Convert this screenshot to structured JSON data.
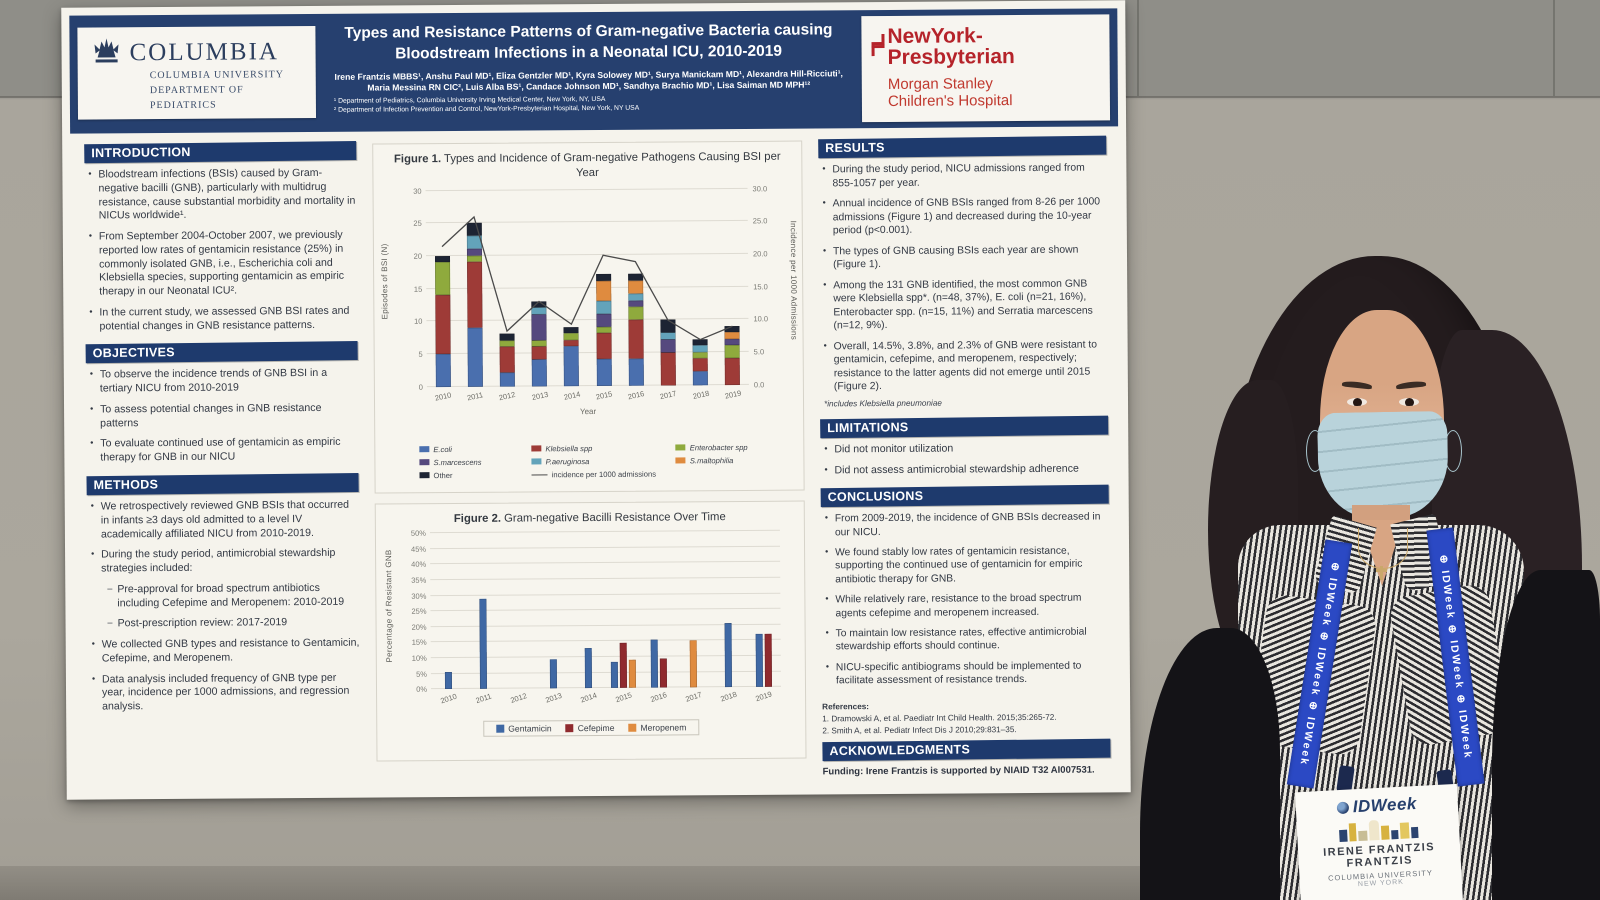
{
  "poster": {
    "header": {
      "columbia": {
        "word": "COLUMBIA",
        "sub1": "COLUMBIA UNIVERSITY",
        "sub2": "DEPARTMENT OF PEDIATRICS"
      },
      "title_line1": "Types and Resistance Patterns of Gram-negative Bacteria causing",
      "title_line2": "Bloodstream Infections in a Neonatal ICU, 2010-2019",
      "authors": "Irene Frantzis MBBS¹, Anshu Paul MD¹, Eliza Gentzler MD¹, Kyra Solowey MD¹, Surya Manickam MD¹, Alexandra Hill-Ricciuti¹, Maria Messina RN CIC², Luis Alba BS¹, Candace Johnson MD¹, Sandhya Brachio MD¹, Lisa Saiman MD MPH¹²",
      "affil1": "¹ Department of Pediatrics, Columbia University Irving Medical Center, New York, NY, USA",
      "affil2": "² Department of Infection Prevention and Control, NewYork-Presbyterian Hospital, New York, NY USA",
      "nyp": {
        "line1": "NewYork-",
        "line2": "Presbyterian",
        "sub1": "Morgan Stanley",
        "sub2": "Children's Hospital"
      }
    },
    "sections": {
      "introduction": {
        "title": "INTRODUCTION",
        "bullets": [
          "Bloodstream infections (BSIs) caused by Gram-negative bacilli (GNB), particularly with multidrug resistance, cause substantial morbidity and mortality in NICUs worldwide¹.",
          "From September 2004-October 2007, we previously reported low rates of gentamicin resistance (25%) in commonly isolated GNB, i.e., Escherichia coli and Klebsiella species, supporting gentamicin as empiric therapy in our Neonatal ICU².",
          "In the current study, we assessed GNB BSI rates and potential changes in GNB resistance patterns."
        ]
      },
      "objectives": {
        "title": "OBJECTIVES",
        "bullets": [
          "To observe the incidence trends of GNB BSI in a tertiary NICU from 2010-2019",
          "To assess potential changes in GNB resistance patterns",
          "To evaluate continued use of gentamicin as empiric therapy for GNB in our NICU"
        ]
      },
      "methods": {
        "title": "METHODS",
        "bullets": [
          "We retrospectively reviewed GNB BSIs that occurred in infants ≥3 days old admitted to a level IV academically affiliated NICU from 2010-2019.",
          "During the study period, antimicrobial stewardship strategies included:",
          "Pre-approval for broad spectrum antibiotics including Cefepime and Meropenem: 2010-2019",
          "Post-prescription review: 2017-2019",
          "We collected GNB types and resistance to Gentamicin, Cefepime, and Meropenem.",
          "Data analysis included frequency of GNB type per year, incidence per 1000 admissions, and regression analysis."
        ]
      },
      "results": {
        "title": "RESULTS",
        "bullets": [
          "During the study period, NICU admissions ranged from 855-1057 per year.",
          "Annual incidence of GNB BSIs ranged from 8-26 per 1000 admissions (Figure 1) and decreased during the 10-year period (p<0.001).",
          "The types of GNB causing BSIs each year are shown (Figure 1).",
          "Among the 131 GNB identified, the most common GNB were Klebsiella spp*. (n=48, 37%), E. coli (n=21, 16%), Enterobacter spp. (n=15, 11%) and Serratia marcescens (n=12, 9%).",
          "Overall, 14.5%, 3.8%, and 2.3% of GNB were resistant to gentamicin, cefepime, and meropenem, respectively; resistance to the latter agents did not emerge until 2015 (Figure 2)."
        ],
        "footnote": "*includes Klebsiella pneumoniae"
      },
      "limitations": {
        "title": "LIMITATIONS",
        "bullets": [
          "Did not monitor utilization",
          "Did not assess antimicrobial stewardship adherence"
        ]
      },
      "conclusions": {
        "title": "CONCLUSIONS",
        "bullets": [
          "From 2009-2019, the incidence of GNB BSIs decreased in our NICU.",
          "We found stably low rates of gentamicin resistance, supporting the continued use of gentamicin for empiric antibiotic therapy for GNB.",
          "While relatively rare, resistance to the broad spectrum agents cefepime and meropenem increased.",
          "To maintain low resistance rates, effective antimicrobial stewardship efforts should continue.",
          "NICU-specific antibiograms should be implemented to facilitate assessment of resistance trends."
        ]
      },
      "references": {
        "title": "References:",
        "items": [
          "1. Dramowski A, et al. Paediatr Int Child Health. 2015;35:265-72.",
          "2. Smith A, et al. Pediatr Infect Dis J 2010;29:831–35."
        ]
      },
      "acknowledgments": {
        "title": "ACKNOWLEDGMENTS",
        "text": "Funding: Irene Frantzis is supported by NIAID T32 AI007531."
      }
    }
  },
  "chart_data": [
    {
      "type": "bar",
      "stacked": true,
      "title_bold": "Figure 1.",
      "title_rest": " Types and Incidence of Gram-negative Pathogens Causing BSI per Year",
      "categories": [
        "2010",
        "2011",
        "2012",
        "2013",
        "2014",
        "2015",
        "2016",
        "2017",
        "2018",
        "2019"
      ],
      "series": [
        {
          "name": "E.coli",
          "color": "#4a6fae",
          "values": [
            5,
            9,
            2,
            4,
            6,
            4,
            4,
            0,
            2,
            0
          ]
        },
        {
          "name": "Klebsiella spp",
          "color": "#9e3b37",
          "values": [
            9,
            10,
            4,
            2,
            1,
            4,
            6,
            5,
            2,
            4
          ]
        },
        {
          "name": "Enterobacter spp",
          "color": "#8faa3d",
          "values": [
            5,
            1,
            1,
            1,
            1,
            1,
            2,
            0,
            1,
            2
          ]
        },
        {
          "name": "S.marcescens",
          "color": "#55497e",
          "values": [
            0,
            1,
            0,
            4,
            0,
            2,
            1,
            2,
            0,
            1
          ]
        },
        {
          "name": "P.aeruginosa",
          "color": "#63a3ba",
          "values": [
            0,
            2,
            0,
            1,
            0,
            2,
            1,
            1,
            1,
            0
          ]
        },
        {
          "name": "S.maltophilia",
          "color": "#df8b3f",
          "values": [
            0,
            0,
            0,
            0,
            0,
            3,
            2,
            0,
            0,
            1
          ]
        },
        {
          "name": "Other",
          "color": "#1d2433",
          "values": [
            1,
            2,
            1,
            1,
            1,
            1,
            1,
            2,
            1,
            1
          ]
        }
      ],
      "line_series": {
        "name": "incidence per 1000 admissions",
        "color": "#4a4a4a",
        "values": [
          21.5,
          26,
          8.5,
          13,
          9.5,
          20,
          19,
          10,
          7,
          9
        ]
      },
      "xlabel": "Year",
      "ylabel": "Episodes of BSI (N)",
      "ylabel_right": "Incidence per 1000 Admissions",
      "ylim": [
        0,
        30
      ],
      "ytick_step": 5,
      "y2ticks": [
        "0.0",
        "5.0",
        "10.0",
        "15.0",
        "20.0",
        "25.0",
        "30.0"
      ],
      "grid": true,
      "legend_position": "bottom"
    },
    {
      "type": "bar",
      "grouped": true,
      "title_bold": "Figure 2.",
      "title_rest": "  Gram-negative Bacilli Resistance Over Time",
      "categories": [
        "2010",
        "2011",
        "2012",
        "2013",
        "2014",
        "2015",
        "2016",
        "2017",
        "2018",
        "2019"
      ],
      "series": [
        {
          "name": "Gentamicin",
          "color": "#3f68a4",
          "values": [
            5.5,
            29,
            0,
            9.5,
            13,
            8.5,
            15.5,
            0,
            20.5,
            17
          ]
        },
        {
          "name": "Cefepime",
          "color": "#8f2a2e",
          "values": [
            0,
            0,
            0,
            0,
            0,
            14.5,
            9.5,
            0,
            0,
            17
          ]
        },
        {
          "name": "Meropenem",
          "color": "#df8b3f",
          "values": [
            0,
            0,
            0,
            0,
            0,
            9,
            0,
            15,
            0,
            0
          ]
        }
      ],
      "xlabel": "",
      "ylabel": "Percentage of Resistant GNB",
      "ylim": [
        0,
        50
      ],
      "ytick_step": 5,
      "ytick_suffix": "%",
      "grid": true,
      "legend_position": "bottom"
    }
  ],
  "person": {
    "lanyard_text": "IDWeek",
    "badge": {
      "brand": "IDWeek",
      "name_line1": "IRENE FRANTZIS",
      "name_line2": "FRANTZIS",
      "org_line1": "COLUMBIA UNIVERSITY",
      "org_line2": "NEW YORK"
    }
  }
}
